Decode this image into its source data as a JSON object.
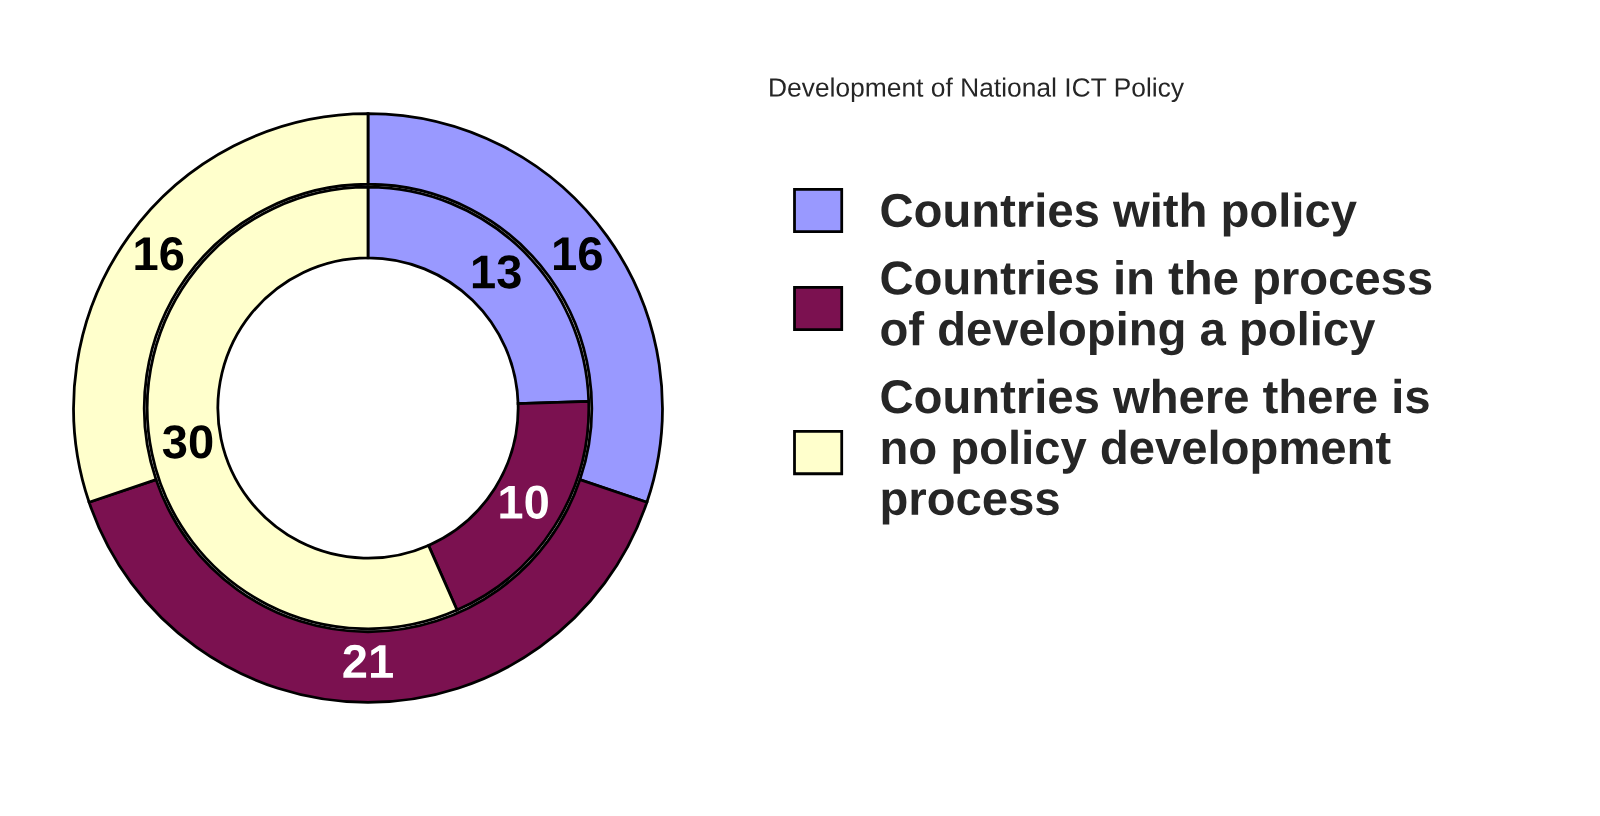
{
  "chart_data": {
    "type": "donut",
    "title": "Development of National ICT Policy",
    "categories": [
      "Countries with policy",
      "Countries in the process of developing a policy",
      "Countries where there is no policy development process"
    ],
    "colors": [
      "#9999ff",
      "#7b1150",
      "#ffffcc"
    ],
    "series": [
      {
        "values": [
          16,
          21,
          16
        ]
      },
      {
        "values": [
          13,
          10,
          30
        ]
      }
    ],
    "data_labels": true,
    "legend": "right"
  }
}
